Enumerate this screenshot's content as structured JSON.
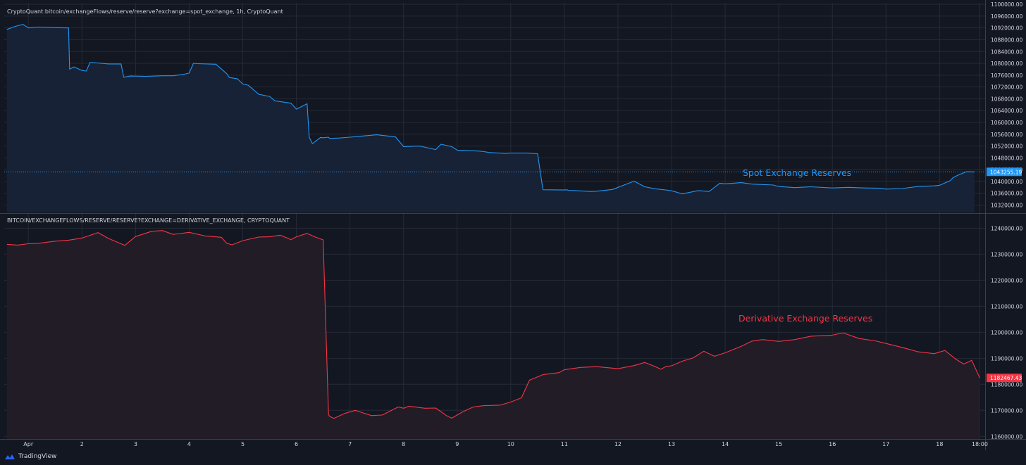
{
  "colors": {
    "background": "#131722",
    "grid": "#252a36",
    "spot_line": "#2196f3",
    "spot_fill": "#172236",
    "derivative_line": "#f23645",
    "derivative_fill": "#221c27",
    "text": "#d1d4dc",
    "axis_border": "#3a3f4b"
  },
  "header": {
    "spot_title": "CryptoQuant:bitcoin/exchangeFlows/reserve/reserve?exchange=spot_exchange, 1h, CryptoQuant",
    "derivative_title": "BITCOIN/EXCHANGEFLOWS/RESERVE/RESERVE?EXCHANGE=DERIVATIVE_EXCHANGE, CRYPTOQUANT"
  },
  "annotations": {
    "spot_label": "Spot Exchange Reserves",
    "derivative_label": "Derivative Exchange Reserves"
  },
  "footer": {
    "brand": "TradingView",
    "logo_icon": "tradingview-logo-icon"
  },
  "chart_data": [
    {
      "type": "area",
      "title": "CryptoQuant:bitcoin/exchangeFlows/reserve/reserve?exchange=spot_exchange, 1h, CryptoQuant",
      "annotation": "Spot Exchange Reserves",
      "x_unit": "day",
      "x_range": [
        0.55,
        18.85
      ],
      "ylim": [
        1029500,
        1100500
      ],
      "y_ticks": [
        "1032000.00",
        "1036000.00",
        "1040000.00",
        "1044000.00",
        "1048000.00",
        "1052000.00",
        "1056000.00",
        "1060000.00",
        "1064000.00",
        "1068000.00",
        "1072000.00",
        "1076000.00",
        "1080000.00",
        "1084000.00",
        "1088000.00",
        "1092000.00",
        "1096000.00",
        "1100000.00"
      ],
      "last_value": "1043255.19",
      "x": [
        0.6,
        0.75,
        0.9,
        1.0,
        1.2,
        1.5,
        1.75,
        1.77,
        1.85,
        2.0,
        2.08,
        2.15,
        2.3,
        2.5,
        2.73,
        2.78,
        2.9,
        3.2,
        3.5,
        3.7,
        3.9,
        4.0,
        4.08,
        4.15,
        4.5,
        4.7,
        4.75,
        4.9,
        5.0,
        5.1,
        5.3,
        5.5,
        5.6,
        5.9,
        6.0,
        6.2,
        6.24,
        6.3,
        6.45,
        6.5,
        6.6,
        6.62,
        6.8,
        7.0,
        7.5,
        7.85,
        8.0,
        8.3,
        8.6,
        8.7,
        8.9,
        9.0,
        9.4,
        9.5,
        9.6,
        9.9,
        10.0,
        10.3,
        10.5,
        10.6,
        11.0,
        11.05,
        11.07,
        11.2,
        11.5,
        11.6,
        11.9,
        12.3,
        12.5,
        12.7,
        12.95,
        13.05,
        13.2,
        13.5,
        13.7,
        13.9,
        14.0,
        14.3,
        14.5,
        14.9,
        15.0,
        15.3,
        15.6,
        16.0,
        16.3,
        16.6,
        16.9,
        17.0,
        17.3,
        17.6,
        17.9,
        18.0,
        18.2,
        18.25,
        18.35,
        18.5,
        18.65
      ],
      "values": [
        1091500,
        1092500,
        1093200,
        1092000,
        1092300,
        1092100,
        1092000,
        1078000,
        1078800,
        1077600,
        1077400,
        1080300,
        1080100,
        1079800,
        1079800,
        1075300,
        1075700,
        1075600,
        1075800,
        1075800,
        1076300,
        1076700,
        1080000,
        1079900,
        1079700,
        1076500,
        1075200,
        1074800,
        1073000,
        1072600,
        1069500,
        1068800,
        1067300,
        1066500,
        1064500,
        1066300,
        1055000,
        1052800,
        1054900,
        1054800,
        1055000,
        1054600,
        1054700,
        1055000,
        1055800,
        1055100,
        1051800,
        1052000,
        1050800,
        1052600,
        1051800,
        1050600,
        1050300,
        1050100,
        1049800,
        1049500,
        1049600,
        1049600,
        1049400,
        1037200,
        1037100,
        1037200,
        1037000,
        1036900,
        1036600,
        1036700,
        1037300,
        1040100,
        1038200,
        1037500,
        1037000,
        1036600,
        1035800,
        1036900,
        1036600,
        1039400,
        1039200,
        1039600,
        1039100,
        1038800,
        1038300,
        1037900,
        1038200,
        1037800,
        1038000,
        1037800,
        1037700,
        1037400,
        1037600,
        1038300,
        1038500,
        1038700,
        1040300,
        1041300,
        1042200,
        1043300,
        1043255
      ]
    },
    {
      "type": "area",
      "title": "BITCOIN/EXCHANGEFLOWS/RESERVE/RESERVE?EXCHANGE=DERIVATIVE_EXCHANGE, CRYPTOQUANT",
      "annotation": "Derivative Exchange Reserves",
      "x_unit": "day",
      "x_range": [
        0.55,
        18.85
      ],
      "ylim": [
        1159000,
        1245500
      ],
      "y_ticks": [
        "1160000.00",
        "1170000.00",
        "1180000.00",
        "1190000.00",
        "1200000.00",
        "1210000.00",
        "1220000.00",
        "1230000.00",
        "1240000.00"
      ],
      "last_value": "1182467.43",
      "x_ticks": [
        "Apr",
        "2",
        "3",
        "4",
        "5",
        "6",
        "7",
        "8",
        "9",
        "10",
        "11",
        "12",
        "13",
        "14",
        "15",
        "16",
        "17",
        "18",
        "18:00"
      ],
      "x_tick_positions": [
        1,
        2,
        3,
        4,
        5,
        6,
        7,
        8,
        9,
        10,
        11,
        12,
        13,
        14,
        15,
        16,
        17,
        18,
        18.75
      ],
      "x": [
        0.6,
        0.8,
        1.0,
        1.2,
        1.5,
        1.75,
        2.0,
        2.3,
        2.5,
        2.8,
        3.0,
        3.3,
        3.5,
        3.7,
        4.0,
        4.3,
        4.6,
        4.7,
        4.8,
        5.0,
        5.3,
        5.5,
        5.7,
        5.9,
        6.0,
        6.2,
        6.35,
        6.5,
        6.6,
        6.62,
        6.7,
        6.9,
        7.1,
        7.4,
        7.6,
        7.9,
        8.0,
        8.1,
        8.4,
        8.6,
        8.8,
        8.9,
        9.1,
        9.3,
        9.5,
        9.8,
        10.0,
        10.2,
        10.35,
        10.6,
        10.9,
        11.0,
        11.3,
        11.6,
        12.0,
        12.3,
        12.5,
        12.7,
        12.8,
        12.9,
        13.0,
        13.2,
        13.4,
        13.6,
        13.8,
        14.0,
        14.3,
        14.5,
        14.7,
        15.0,
        15.3,
        15.6,
        16.0,
        16.2,
        16.5,
        16.8,
        17.0,
        17.3,
        17.6,
        17.9,
        18.1,
        18.3,
        18.45,
        18.6,
        18.75
      ],
      "values": [
        1233800,
        1233500,
        1234000,
        1234200,
        1235000,
        1235400,
        1236200,
        1238300,
        1236000,
        1233400,
        1236800,
        1238800,
        1239100,
        1237600,
        1238400,
        1237000,
        1236500,
        1234200,
        1233600,
        1235200,
        1236600,
        1236700,
        1237300,
        1235600,
        1236700,
        1238000,
        1236600,
        1235500,
        1168400,
        1167700,
        1166900,
        1168800,
        1170000,
        1168000,
        1168200,
        1171300,
        1170800,
        1171600,
        1170800,
        1170900,
        1168000,
        1167000,
        1169400,
        1171300,
        1171800,
        1172000,
        1173200,
        1174800,
        1181600,
        1183700,
        1184500,
        1185600,
        1186500,
        1186800,
        1186000,
        1187200,
        1188400,
        1186800,
        1185800,
        1186900,
        1187100,
        1188900,
        1190100,
        1192700,
        1190800,
        1192100,
        1194600,
        1196600,
        1197200,
        1196500,
        1197200,
        1198500,
        1198900,
        1199800,
        1197600,
        1196700,
        1195700,
        1194200,
        1192500,
        1191800,
        1193000,
        1189700,
        1187800,
        1189200,
        1182467
      ]
    }
  ]
}
